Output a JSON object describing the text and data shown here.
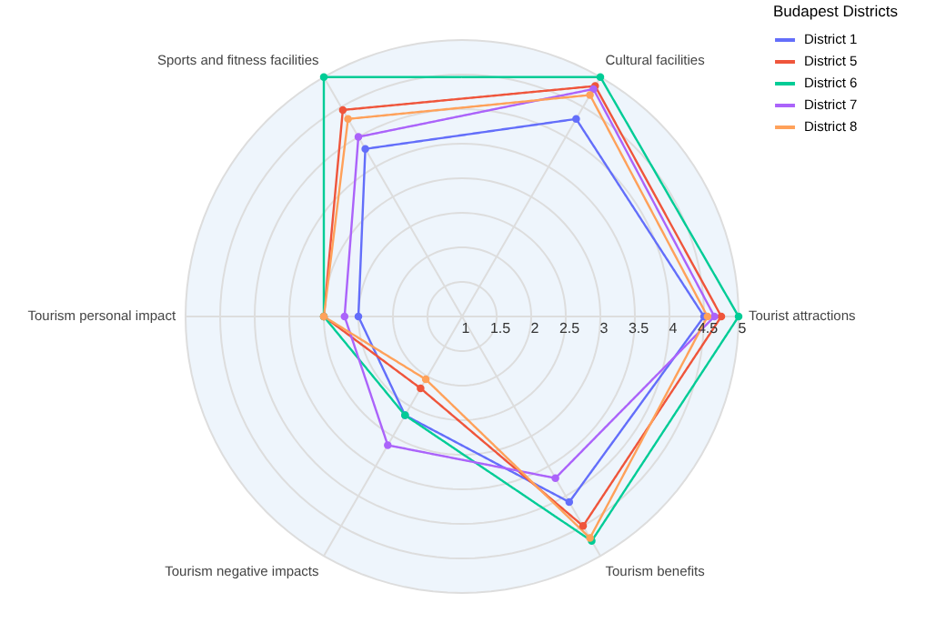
{
  "chart_data": {
    "type": "radar",
    "categories": [
      "Cultural facilities",
      "Tourist attractions",
      "Tourism benefits",
      "Tourism negative impacts",
      "Tourism personal impact",
      "Sports and fitness facilities"
    ],
    "legend_title": "Budapest Districts",
    "series": [
      {
        "name": "District 1",
        "color": "#636efa",
        "values": [
          4.3,
          4.5,
          4.1,
          2.65,
          2.5,
          3.8
        ]
      },
      {
        "name": "District 5",
        "color": "#ef553b",
        "values": [
          4.85,
          4.75,
          4.5,
          2.2,
          3.0,
          4.45
        ]
      },
      {
        "name": "District 6",
        "color": "#00cc96",
        "values": [
          5.0,
          5.0,
          4.75,
          2.65,
          3.0,
          5.0
        ]
      },
      {
        "name": "District 7",
        "color": "#ab63fa",
        "values": [
          4.8,
          4.65,
          3.7,
          3.15,
          2.7,
          4.0
        ]
      },
      {
        "name": "District 8",
        "color": "#ffa15a",
        "values": [
          4.7,
          4.55,
          4.7,
          2.05,
          3.0,
          4.3
        ]
      }
    ],
    "ylim": [
      1,
      5
    ],
    "yticks": [
      1,
      1.5,
      2,
      2.5,
      3,
      3.5,
      4,
      4.5,
      5
    ],
    "grid": true,
    "legend": "top right",
    "marker": "circle",
    "line_style": "solid"
  }
}
